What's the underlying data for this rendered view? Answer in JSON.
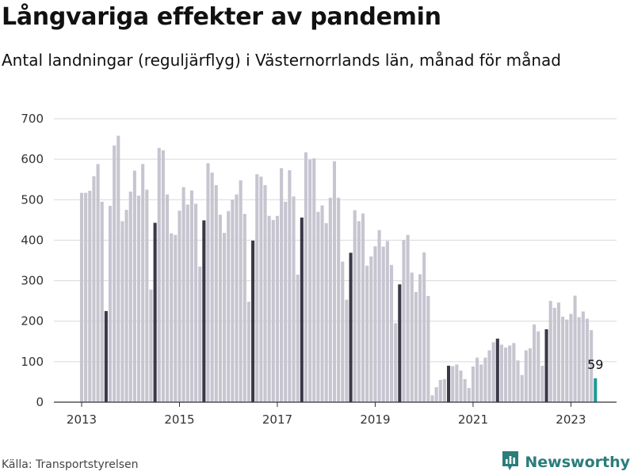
{
  "chart_data": {
    "type": "bar",
    "title": "Långvariga effekter av pandemin",
    "subtitle": "Antal landningar (reguljärflyg) i Västernorrlands län, månad för månad",
    "xlabel": "",
    "ylabel": "",
    "ylim": [
      0,
      700
    ],
    "yticks": [
      "0",
      "100",
      "200",
      "300",
      "400",
      "500",
      "600",
      "700"
    ],
    "ytick_values": [
      0,
      100,
      200,
      300,
      400,
      500,
      600,
      700
    ],
    "xticks": [
      "2013",
      "2015",
      "2017",
      "2019",
      "2021",
      "2023"
    ],
    "xtick_positions": [
      "2013-01",
      "2015-01",
      "2017-01",
      "2019-01",
      "2021-01",
      "2023-01"
    ],
    "grid": true,
    "colors": {
      "default": "#c6c5d0",
      "july": "#3a3948",
      "last": "#1f9a92"
    },
    "highlight": "July of each year in dark; latest month in teal",
    "categories": [
      "2013-01",
      "2013-02",
      "2013-03",
      "2013-04",
      "2013-05",
      "2013-06",
      "2013-07",
      "2013-08",
      "2013-09",
      "2013-10",
      "2013-11",
      "2013-12",
      "2014-01",
      "2014-02",
      "2014-03",
      "2014-04",
      "2014-05",
      "2014-06",
      "2014-07",
      "2014-08",
      "2014-09",
      "2014-10",
      "2014-11",
      "2014-12",
      "2015-01",
      "2015-02",
      "2015-03",
      "2015-04",
      "2015-05",
      "2015-06",
      "2015-07",
      "2015-08",
      "2015-09",
      "2015-10",
      "2015-11",
      "2015-12",
      "2016-01",
      "2016-02",
      "2016-03",
      "2016-04",
      "2016-05",
      "2016-06",
      "2016-07",
      "2016-08",
      "2016-09",
      "2016-10",
      "2016-11",
      "2016-12",
      "2017-01",
      "2017-02",
      "2017-03",
      "2017-04",
      "2017-05",
      "2017-06",
      "2017-07",
      "2017-08",
      "2017-09",
      "2017-10",
      "2017-11",
      "2017-12",
      "2018-01",
      "2018-02",
      "2018-03",
      "2018-04",
      "2018-05",
      "2018-06",
      "2018-07",
      "2018-08",
      "2018-09",
      "2018-10",
      "2018-11",
      "2018-12",
      "2019-01",
      "2019-02",
      "2019-03",
      "2019-04",
      "2019-05",
      "2019-06",
      "2019-07",
      "2019-08",
      "2019-09",
      "2019-10",
      "2019-11",
      "2019-12",
      "2020-01",
      "2020-02",
      "2020-03",
      "2020-04",
      "2020-05",
      "2020-06",
      "2020-07",
      "2020-08",
      "2020-09",
      "2020-10",
      "2020-11",
      "2020-12",
      "2021-01",
      "2021-02",
      "2021-03",
      "2021-04",
      "2021-05",
      "2021-06",
      "2021-07",
      "2021-08",
      "2021-09",
      "2021-10",
      "2021-11",
      "2021-12",
      "2022-01",
      "2022-02",
      "2022-03",
      "2022-04",
      "2022-05",
      "2022-06",
      "2022-07",
      "2022-08",
      "2022-09",
      "2022-10",
      "2022-11",
      "2022-12",
      "2023-01",
      "2023-02",
      "2023-03",
      "2023-04",
      "2023-05",
      "2023-06",
      "2023-07"
    ],
    "values": [
      517,
      517,
      522,
      558,
      588,
      495,
      225,
      485,
      634,
      658,
      447,
      475,
      520,
      572,
      510,
      588,
      525,
      278,
      443,
      628,
      622,
      513,
      417,
      413,
      473,
      531,
      488,
      523,
      490,
      335,
      449,
      590,
      567,
      536,
      463,
      418,
      472,
      500,
      513,
      548,
      465,
      248,
      399,
      563,
      557,
      536,
      460,
      450,
      460,
      578,
      495,
      573,
      508,
      315,
      456,
      617,
      599,
      602,
      470,
      486,
      442,
      505,
      595,
      505,
      347,
      253,
      369,
      474,
      447,
      466,
      337,
      360,
      385,
      425,
      384,
      398,
      339,
      195,
      291,
      400,
      413,
      320,
      272,
      316,
      370,
      262,
      17,
      37,
      55,
      57,
      90,
      89,
      93,
      78,
      57,
      35,
      88,
      110,
      93,
      110,
      128,
      148,
      157,
      142,
      135,
      140,
      146,
      103,
      67,
      128,
      133,
      192,
      175,
      90,
      180,
      250,
      233,
      246,
      211,
      204,
      218,
      263,
      210,
      224,
      206,
      178,
      59
    ],
    "last_value_label": "59"
  },
  "footer": {
    "source": "Källa: Transportstyrelsen",
    "brand": "Newsworthy"
  }
}
